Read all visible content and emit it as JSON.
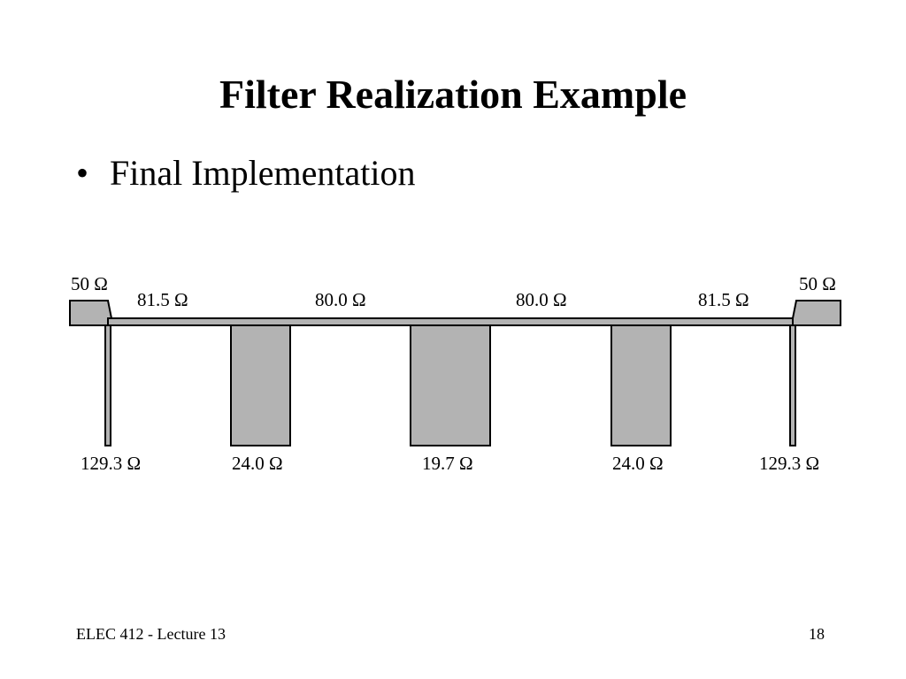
{
  "slide": {
    "title": "Filter Realization Example",
    "bullet": "Final Implementation",
    "footer_left": "ELEC 412 - Lecture 13",
    "page_number": "18"
  },
  "diagram": {
    "fill_color": "#b3b3b3",
    "stroke_color": "#000000",
    "top_labels": [
      "50 Ω",
      "81.5 Ω",
      "80.0 Ω",
      "80.0 Ω",
      "81.5 Ω",
      "50 Ω"
    ],
    "bottom_labels": [
      "129.3 Ω",
      "24.0 Ω",
      "19.7 Ω",
      "24.0 Ω",
      "129.3 Ω"
    ]
  }
}
